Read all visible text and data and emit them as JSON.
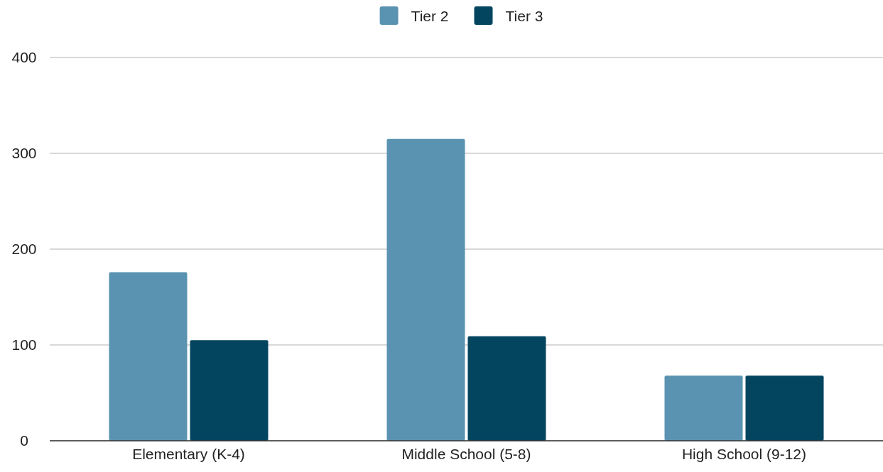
{
  "chart_data": {
    "type": "bar",
    "categories": [
      "Elementary (K-4)",
      "Middle School (5-8)",
      "High School (9-12)"
    ],
    "series": [
      {
        "name": "Tier 2",
        "color": "#5a93b1",
        "values": [
          176,
          315,
          68
        ]
      },
      {
        "name": "Tier 3",
        "color": "#03455f",
        "values": [
          105,
          109,
          68
        ]
      }
    ],
    "ylim": [
      0,
      400
    ],
    "yticks": [
      0,
      100,
      200,
      300,
      400
    ],
    "grid": "y",
    "legend": "top"
  }
}
